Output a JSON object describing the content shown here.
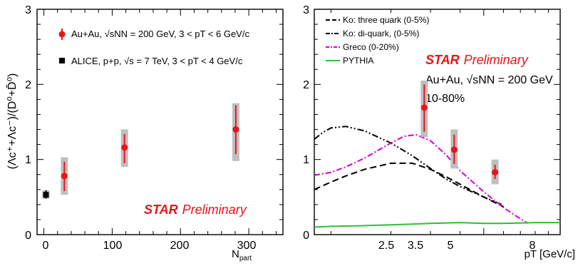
{
  "chart_data": [
    {
      "type": "scatter",
      "xlabel": "N",
      "xlabel_sub": "part",
      "ylabel": "(Λc⁺+Λc⁻)/(D⁰+D̄⁰)",
      "xlim": [
        -10,
        350
      ],
      "ylim": [
        0,
        3
      ],
      "xticks": [
        "0",
        "100",
        "200",
        "300"
      ],
      "yticks": [
        "0",
        "1",
        "2",
        "3"
      ],
      "legend": {
        "placement": "top-left",
        "entries": [
          "Au+Au, √sNN = 200 GeV, 3 < pT < 6 GeV/c",
          "ALICE, p+p, √s = 7 TeV, 3 < pT < 4 GeV/c"
        ]
      },
      "annotation": {
        "bold": "STAR",
        "italic": "Preliminary"
      },
      "series": [
        {
          "name": "Au+Au, √sNN = 200 GeV, 3 < pT < 6 GeV/c",
          "color": "#e8141b",
          "points": [
            {
              "x": 30,
              "y": 0.78,
              "stat": [
                0.58,
                0.97
              ],
              "sys": [
                0.53,
                1.03
              ]
            },
            {
              "x": 118,
              "y": 1.16,
              "stat": [
                0.95,
                1.34
              ],
              "sys": [
                0.9,
                1.4
              ]
            },
            {
              "x": 281,
              "y": 1.4,
              "stat": [
                1.07,
                1.72
              ],
              "sys": [
                0.98,
                1.75
              ]
            }
          ]
        },
        {
          "name": "ALICE, p+p, √s = 7 TeV, 3 < pT < 4 GeV/c",
          "color": "#000000",
          "points": [
            {
              "x": 3,
              "y": 0.53,
              "stat": [
                0.48,
                0.59
              ],
              "sys": [
                0.48,
                0.59
              ]
            }
          ]
        }
      ]
    },
    {
      "type": "line",
      "xlabel": "pT [GeV/c]",
      "xlim": [
        0.8,
        10.0
      ],
      "ylim": [
        0,
        3
      ],
      "xticks": [
        "2.5",
        "3.5",
        "5",
        "8"
      ],
      "yticks": [
        "0",
        "1",
        "2",
        "3"
      ],
      "legend": {
        "placement": "top-left",
        "entries": [
          "Ko: three quark (0-5%)",
          "Ko: di-quark, (0-5%)",
          "Greco (0-20%)",
          "PYTHIA"
        ]
      },
      "annotation": {
        "bold": "STAR",
        "italic": "Preliminary"
      },
      "energy_label": "Au+Au, √sNN = 200 GeV",
      "centrality_label": "10-80%",
      "data_series": {
        "name": "Au+Au, √sNN = 200 GeV, 10-80%",
        "color": "#e8141b",
        "points": [
          {
            "x": 2.82,
            "y": 1.69,
            "stat": [
              1.37,
              2.0
            ],
            "sys": [
              1.3,
              2.05
            ]
          },
          {
            "x": 3.78,
            "y": 1.13,
            "stat": [
              0.94,
              1.33
            ],
            "sys": [
              0.88,
              1.4
            ]
          },
          {
            "x": 5.55,
            "y": 0.83,
            "stat": [
              0.74,
              0.93
            ],
            "sys": [
              0.67,
              1.0
            ]
          }
        ]
      },
      "series": [
        {
          "name": "Ko: three quark (0-5%)",
          "color": "#000000",
          "dash": "9,5",
          "x": [
            0.8,
            1.0,
            1.2,
            1.5,
            2.0,
            2.5,
            3.0,
            3.5,
            4.0,
            5.0,
            6.0
          ],
          "y": [
            0.6,
            0.7,
            0.78,
            0.87,
            0.95,
            0.95,
            0.87,
            0.77,
            0.67,
            0.5,
            0.37
          ]
        },
        {
          "name": "Ko: di-quark, (0-5%)",
          "color": "#000000",
          "dash": "9,3,2,3,2,3",
          "x": [
            0.8,
            0.9,
            1.0,
            1.2,
            1.5,
            2.0,
            2.5,
            3.0,
            3.5,
            4.0,
            5.0,
            6.0
          ],
          "y": [
            1.27,
            1.36,
            1.42,
            1.44,
            1.38,
            1.22,
            1.05,
            0.88,
            0.74,
            0.64,
            0.5,
            0.39
          ]
        },
        {
          "name": "Greco (0-20%)",
          "color": "#d400d4",
          "dash": "8,3,2,3",
          "x": [
            0.8,
            1.0,
            1.2,
            1.5,
            2.0,
            2.3,
            2.6,
            3.0,
            3.5,
            4.0,
            5.0,
            6.0,
            7.0,
            7.5
          ],
          "y": [
            0.79,
            0.83,
            0.9,
            1.02,
            1.22,
            1.31,
            1.33,
            1.25,
            1.06,
            0.85,
            0.57,
            0.36,
            0.21,
            0.15
          ]
        },
        {
          "name": "PYTHIA",
          "color": "#2fbf2f",
          "dash": "",
          "x": [
            0.8,
            1.0,
            1.5,
            2.0,
            2.5,
            3.0,
            4.0,
            5.0,
            6.0,
            8.0,
            10.0
          ],
          "y": [
            0.1,
            0.11,
            0.12,
            0.13,
            0.14,
            0.15,
            0.16,
            0.15,
            0.15,
            0.16,
            0.16
          ]
        }
      ]
    }
  ]
}
